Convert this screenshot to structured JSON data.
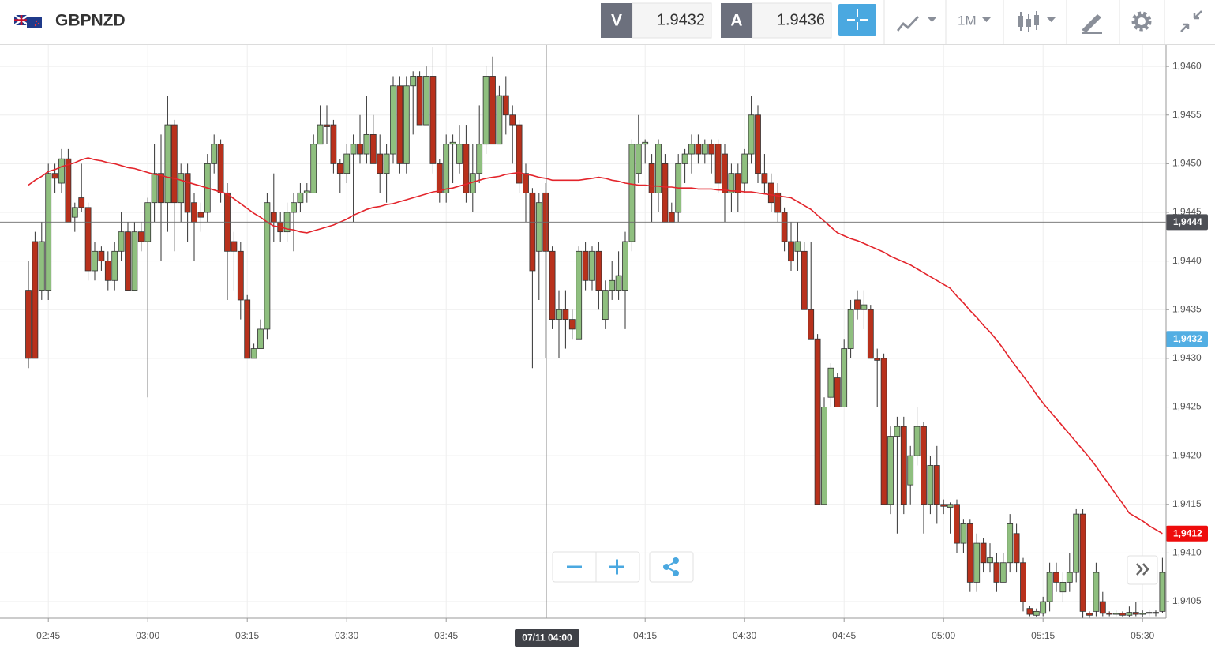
{
  "header": {
    "symbol": "GBPNZD",
    "sell_label": "V",
    "sell": "1.9432",
    "buy_label": "A",
    "buy": "1.9436",
    "timeframe": "1M"
  },
  "chart_data": {
    "type": "candlestick",
    "categories": [
      null,
      null,
      null,
      "02:45",
      null,
      null,
      null,
      null,
      null,
      null,
      null,
      null,
      null,
      null,
      null,
      null,
      null,
      null,
      "03:00",
      null,
      null,
      null,
      null,
      null,
      null,
      null,
      null,
      null,
      null,
      null,
      null,
      null,
      null,
      "03:15",
      null,
      null,
      null,
      null,
      null,
      null,
      null,
      null,
      null,
      null,
      null,
      null,
      null,
      null,
      "03:30",
      null,
      null,
      null,
      null,
      null,
      null,
      null,
      null,
      null,
      null,
      null,
      null,
      null,
      null,
      "03:45",
      null,
      null,
      null,
      null,
      null,
      null,
      null,
      null,
      null,
      null,
      null,
      null,
      null,
      null,
      null,
      null,
      null,
      null,
      null,
      null,
      null,
      null,
      null,
      null,
      null,
      null,
      null,
      null,
      null,
      "04:15",
      null,
      null,
      null,
      null,
      null,
      null,
      null,
      null,
      null,
      null,
      null,
      null,
      null,
      null,
      "04:30",
      null,
      null,
      null,
      null,
      null,
      null,
      null,
      null,
      null,
      null,
      null,
      null,
      null,
      null,
      "04:45",
      null,
      null,
      null,
      null,
      null,
      null,
      null,
      null,
      null,
      null,
      null,
      null,
      null,
      null,
      "05:00",
      null,
      null,
      null,
      null,
      null,
      null,
      null,
      null,
      null,
      null,
      null,
      null,
      null,
      null,
      "05:15",
      null,
      null,
      null,
      null,
      null,
      null,
      null,
      null,
      null,
      null,
      null,
      null,
      null,
      null,
      "05:30",
      null,
      null,
      null
    ],
    "open": [
      1.9437,
      1.9442,
      1.9437,
      1.9437,
      1.9449,
      1.9448,
      1.94505,
      1.94445,
      1.94465,
      1.94455,
      1.9439,
      1.9441,
      1.944,
      1.9438,
      1.9441,
      1.9443,
      1.9437,
      1.9443,
      1.9442,
      1.9446,
      1.9449,
      1.9446,
      1.9454,
      1.9446,
      1.9449,
      1.9446,
      1.9445,
      1.9445,
      1.945,
      1.9452,
      1.9447,
      1.9442,
      1.9441,
      1.9436,
      1.943,
      1.9431,
      1.9433,
      1.9445,
      1.9444,
      1.9443,
      1.9445,
      1.9446,
      1.9447,
      1.9447,
      1.9452,
      1.9454,
      1.9454,
      1.945,
      1.9449,
      1.9451,
      1.9452,
      1.9451,
      1.9453,
      1.9451,
      1.9449,
      1.9451,
      1.9458,
      1.945,
      1.9458,
      1.9459,
      1.9454,
      1.9459,
      1.945,
      1.9447,
      1.9452,
      1.945,
      1.9452,
      1.9447,
      1.9449,
      1.9452,
      1.9459,
      1.9452,
      1.9457,
      1.9455,
      1.9454,
      1.9449,
      1.9447,
      1.9441,
      1.9447,
      1.9441,
      1.9434,
      1.9435,
      1.9434,
      1.9432,
      1.9441,
      1.9438,
      1.9441,
      1.9434,
      1.9437,
      1.9437,
      1.9437,
      1.9442,
      1.9449,
      1.9452,
      1.945,
      1.9447,
      1.945,
      1.9445,
      1.9445,
      1.945,
      1.9451,
      1.9452,
      1.9451,
      1.9452,
      1.9452,
      1.9451,
      1.9447,
      1.9449,
      1.9448,
      1.9451,
      1.9455,
      1.9449,
      1.9448,
      1.9447,
      1.9445,
      1.9442,
      1.9441,
      1.9441,
      1.9435,
      1.9432,
      1.9415,
      1.9426,
      1.9428,
      1.9425,
      1.9431,
      1.9436,
      1.9435,
      1.9435,
      1.943,
      1.943,
      1.9415,
      1.9422,
      1.9423,
      1.9417,
      1.942,
      1.9423,
      1.9415,
      1.9419,
      1.9415,
      1.94147,
      1.9415,
      1.9411,
      1.9413,
      1.9407,
      1.9411,
      1.9409,
      1.9409,
      1.9407,
      1.9409,
      1.9412,
      1.9409,
      1.94043,
      1.94036,
      1.94038,
      1.9405,
      1.9408,
      1.9406,
      1.9407,
      1.9408,
      1.9414,
      1.94038,
      1.9404,
      1.9405,
      1.94038,
      1.94037,
      1.94038,
      1.94036,
      1.94039,
      1.94037,
      1.94038,
      1.94038,
      1.9404
    ],
    "high": [
      1.944,
      1.9443,
      1.9444,
      1.945,
      1.945,
      1.94515,
      1.94515,
      1.9446,
      1.945,
      1.9446,
      1.9442,
      1.94415,
      1.9441,
      1.9442,
      1.9445,
      1.9444,
      1.9444,
      1.9444,
      1.94465,
      1.9452,
      1.9453,
      1.9457,
      1.94545,
      1.945,
      1.945,
      1.9447,
      1.9446,
      1.9451,
      1.9453,
      1.94525,
      1.9448,
      1.9443,
      1.9442,
      1.94365,
      1.94315,
      1.9434,
      1.9447,
      1.9449,
      1.9445,
      1.9446,
      1.9447,
      1.9448,
      1.9448,
      1.9453,
      1.9456,
      1.9456,
      1.94545,
      1.94505,
      1.9452,
      1.9453,
      1.9455,
      1.9457,
      1.9455,
      1.9453,
      1.9452,
      1.9459,
      1.9459,
      1.9459,
      1.94595,
      1.94595,
      1.946,
      1.9462,
      1.94505,
      1.9453,
      1.9453,
      1.9454,
      1.9454,
      1.9452,
      1.9456,
      1.946,
      1.9461,
      1.9458,
      1.9459,
      1.9456,
      1.94545,
      1.945,
      1.94475,
      1.9447,
      1.9448,
      1.94415,
      1.9437,
      1.9437,
      1.9435,
      1.94415,
      1.9442,
      1.94415,
      1.9442,
      1.9438,
      1.944,
      1.9441,
      1.9443,
      1.94525,
      1.9455,
      1.94525,
      1.9451,
      1.94525,
      1.9451,
      1.9446,
      1.9451,
      1.94515,
      1.9453,
      1.9453,
      1.94525,
      1.94525,
      1.94525,
      1.9452,
      1.945,
      1.945,
      1.94515,
      1.9457,
      1.9456,
      1.9451,
      1.9449,
      1.9448,
      1.94455,
      1.9444,
      1.9444,
      1.9442,
      1.9442,
      1.94325,
      1.9426,
      1.94295,
      1.94285,
      1.9432,
      1.9436,
      1.9437,
      1.9437,
      1.94355,
      1.9431,
      1.94305,
      1.9423,
      1.9424,
      1.9424,
      1.9421,
      1.9425,
      1.94235,
      1.942,
      1.9421,
      1.94155,
      1.94152,
      1.94155,
      1.94135,
      1.94135,
      1.9412,
      1.94115,
      1.9411,
      1.941,
      1.941,
      1.9414,
      1.9413,
      1.94095,
      1.94046,
      1.94043,
      1.94055,
      1.9409,
      1.9409,
      1.9408,
      1.941,
      1.94145,
      1.94145,
      1.9404,
      1.9409,
      1.9406,
      1.9404,
      1.94041,
      1.9404,
      1.94045,
      1.9405,
      1.94041,
      1.94042,
      1.94041,
      1.94095
    ],
    "low": [
      1.9429,
      1.943,
      1.9436,
      1.9436,
      1.9447,
      1.9447,
      1.9444,
      1.9443,
      1.9445,
      1.9438,
      1.9438,
      1.9439,
      1.9437,
      1.9437,
      1.944,
      1.9437,
      1.9437,
      1.9441,
      1.9426,
      1.9444,
      1.944,
      1.9443,
      1.9441,
      1.9444,
      1.9442,
      1.944,
      1.9443,
      1.9444,
      1.9449,
      1.9446,
      1.9436,
      1.9437,
      1.9434,
      1.943,
      1.943,
      1.9431,
      1.9432,
      1.9442,
      1.9442,
      1.9442,
      1.9441,
      1.9445,
      1.9446,
      1.9447,
      1.9452,
      1.9452,
      1.9449,
      1.9447,
      1.9448,
      1.9444,
      1.945,
      1.945,
      1.945,
      1.9447,
      1.9446,
      1.945,
      1.9449,
      1.9449,
      1.9453,
      1.9454,
      1.9454,
      1.9449,
      1.9446,
      1.9446,
      1.9448,
      1.9449,
      1.9446,
      1.9445,
      1.9448,
      1.9451,
      1.9452,
      1.9452,
      1.9453,
      1.945,
      1.9447,
      1.9444,
      1.9429,
      1.9436,
      1.943,
      1.9433,
      1.943,
      1.9431,
      1.9432,
      1.9432,
      1.9437,
      1.9437,
      1.9435,
      1.9433,
      1.9436,
      1.9436,
      1.9433,
      1.9441,
      1.9448,
      1.945,
      1.9444,
      1.9445,
      1.9444,
      1.9444,
      1.9444,
      1.9448,
      1.9449,
      1.945,
      1.945,
      1.9449,
      1.9447,
      1.9444,
      1.9445,
      1.9445,
      1.9447,
      1.945,
      1.9448,
      1.9447,
      1.9445,
      1.9444,
      1.9441,
      1.9439,
      1.9439,
      1.9435,
      1.9432,
      1.9415,
      1.9415,
      1.9425,
      1.9425,
      1.9425,
      1.943,
      1.9434,
      1.9433,
      1.943,
      1.9425,
      1.9415,
      1.9414,
      1.9412,
      1.9414,
      1.9415,
      1.9419,
      1.9412,
      1.9414,
      1.9413,
      1.9414,
      1.9412,
      1.941,
      1.941,
      1.9406,
      1.9406,
      1.9408,
      1.9408,
      1.9406,
      1.9407,
      1.9408,
      1.9408,
      1.9404,
      1.94035,
      1.94034,
      1.94035,
      1.9404,
      1.9406,
      1.9405,
      1.9406,
      1.9407,
      1.9403,
      1.9403,
      1.94035,
      1.94035,
      1.94035,
      1.94035,
      1.94034,
      1.94034,
      1.94035,
      1.94034,
      1.94035,
      1.94035,
      1.94038
    ],
    "close": [
      1.943,
      1.943,
      1.9442,
      1.9449,
      1.94485,
      1.94505,
      1.9444,
      1.94455,
      1.94455,
      1.9439,
      1.9441,
      1.944,
      1.9438,
      1.9441,
      1.9443,
      1.9437,
      1.9443,
      1.9442,
      1.9446,
      1.9449,
      1.9446,
      1.9454,
      1.9446,
      1.9449,
      1.9445,
      1.9444,
      1.94445,
      1.945,
      1.9452,
      1.9447,
      1.9441,
      1.9441,
      1.9436,
      1.943,
      1.9431,
      1.9433,
      1.9446,
      1.9444,
      1.9443,
      1.9445,
      1.9446,
      1.9447,
      1.94472,
      1.9452,
      1.9454,
      1.94538,
      1.945,
      1.9449,
      1.9451,
      1.9452,
      1.9451,
      1.9453,
      1.945,
      1.9449,
      1.9451,
      1.9458,
      1.945,
      1.9458,
      1.9459,
      1.9454,
      1.9459,
      1.945,
      1.9447,
      1.9452,
      1.94522,
      1.9452,
      1.9447,
      1.9449,
      1.9452,
      1.9459,
      1.9452,
      1.9457,
      1.9455,
      1.9454,
      1.9448,
      1.9447,
      1.9439,
      1.9446,
      1.9441,
      1.9434,
      1.9435,
      1.9434,
      1.9433,
      1.9441,
      1.9438,
      1.9441,
      1.9437,
      1.9437,
      1.9438,
      1.94385,
      1.9442,
      1.9452,
      1.9452,
      1.94522,
      1.9447,
      1.9452,
      1.9444,
      1.9444,
      1.945,
      1.9451,
      1.9452,
      1.9451,
      1.9452,
      1.9451,
      1.9448,
      1.9447,
      1.9449,
      1.9447,
      1.9451,
      1.9455,
      1.9449,
      1.9448,
      1.9446,
      1.9445,
      1.9442,
      1.944,
      1.9442,
      1.9435,
      1.9432,
      1.9415,
      1.9425,
      1.9429,
      1.9425,
      1.9431,
      1.9435,
      1.9435,
      1.94355,
      1.943,
      1.94298,
      1.9415,
      1.9422,
      1.9423,
      1.9415,
      1.942,
      1.9423,
      1.9415,
      1.9419,
      1.9415,
      1.94148,
      1.9415,
      1.9411,
      1.9413,
      1.9407,
      1.9411,
      1.9409,
      1.94095,
      1.9407,
      1.9409,
      1.9413,
      1.9409,
      1.9405,
      1.94037,
      1.9404,
      1.9405,
      1.9408,
      1.9407,
      1.9407,
      1.9408,
      1.9414,
      1.9404,
      1.94036,
      1.9408,
      1.94038,
      1.94037,
      1.94038,
      1.94036,
      1.94039,
      1.94037,
      1.94038,
      1.94039,
      1.94039,
      1.9408
    ],
    "up_color": "#8fbf7f",
    "down_color": "#b8311c",
    "ma": {
      "color": "#e3242b",
      "values": [
        1.94478,
        1.94483,
        1.94487,
        1.94492,
        1.94494,
        1.94497,
        1.94499,
        1.94501,
        1.94504,
        1.94506,
        1.94504,
        1.94503,
        1.94501,
        1.945,
        1.94498,
        1.94496,
        1.94495,
        1.94493,
        1.94491,
        1.94489,
        1.94488,
        1.94486,
        1.94485,
        1.94483,
        1.94481,
        1.94479,
        1.94477,
        1.94475,
        1.94473,
        1.94471,
        1.94469,
        1.94464,
        1.94459,
        1.94454,
        1.94449,
        1.94445,
        1.9444,
        1.94436,
        1.94435,
        1.94433,
        1.94432,
        1.9443,
        1.94429,
        1.94431,
        1.94433,
        1.94435,
        1.94437,
        1.9444,
        1.94443,
        1.94447,
        1.9445,
        1.94453,
        1.94455,
        1.94456,
        1.94458,
        1.94459,
        1.94461,
        1.94463,
        1.94465,
        1.94467,
        1.94469,
        1.94471,
        1.94472,
        1.94474,
        1.94475,
        1.94477,
        1.94479,
        1.94481,
        1.94483,
        1.94485,
        1.94486,
        1.94487,
        1.94489,
        1.9449,
        1.94491,
        1.94489,
        1.94488,
        1.94486,
        1.94485,
        1.94483,
        1.94483,
        1.94483,
        1.94483,
        1.94483,
        1.94484,
        1.94485,
        1.94486,
        1.94485,
        1.94483,
        1.94482,
        1.9448,
        1.94479,
        1.94478,
        1.94478,
        1.94477,
        1.94477,
        1.94476,
        1.94476,
        1.94475,
        1.94475,
        1.94475,
        1.94474,
        1.94474,
        1.94474,
        1.94473,
        1.94473,
        1.94472,
        1.94472,
        1.94471,
        1.94471,
        1.9447,
        1.94469,
        1.94468,
        1.94467,
        1.94466,
        1.94465,
        1.94461,
        1.94457,
        1.94453,
        1.94447,
        1.94441,
        1.94435,
        1.94429,
        1.94426,
        1.94423,
        1.94421,
        1.94418,
        1.94415,
        1.94412,
        1.94409,
        1.94405,
        1.94402,
        1.94399,
        1.94396,
        1.94392,
        1.94388,
        1.94384,
        1.9438,
        1.94376,
        1.94372,
        1.94364,
        1.94357,
        1.94349,
        1.94342,
        1.94334,
        1.94327,
        1.94319,
        1.9431,
        1.943,
        1.94291,
        1.94282,
        1.94273,
        1.94263,
        1.94254,
        1.94246,
        1.94238,
        1.9423,
        1.94222,
        1.94214,
        1.94206,
        1.94198,
        1.94189,
        1.94179,
        1.9417,
        1.9416,
        1.94151,
        1.94141,
        1.94137,
        1.94133,
        1.94128,
        1.94124,
        1.9412
      ]
    },
    "ylim": [
      1.94033,
      1.94622
    ],
    "yticks": [
      {
        "value": 1.9405,
        "label": "1,9405"
      },
      {
        "value": 1.941,
        "label": "1,9410"
      },
      {
        "value": 1.9415,
        "label": "1,9415"
      },
      {
        "value": 1.942,
        "label": "1,9420"
      },
      {
        "value": 1.9425,
        "label": "1,9425"
      },
      {
        "value": 1.943,
        "label": "1,9430"
      },
      {
        "value": 1.9435,
        "label": "1,9435"
      },
      {
        "value": 1.944,
        "label": "1,9440"
      },
      {
        "value": 1.9445,
        "label": "1,9445"
      },
      {
        "value": 1.945,
        "label": "1,9450"
      },
      {
        "value": 1.9455,
        "label": "1,9455"
      },
      {
        "value": 1.946,
        "label": "1,9460"
      }
    ],
    "grid": true,
    "crosshair_x_label": "07/11 04:00",
    "price_labels": [
      {
        "value": 1.9444,
        "label": "1,9444",
        "color": "#4d4f55"
      },
      {
        "value": 1.9432,
        "label": "1,9432",
        "color": "#52aee3"
      },
      {
        "value": 1.9412,
        "label": "1,9412",
        "color": "#ee0c0c"
      }
    ]
  }
}
